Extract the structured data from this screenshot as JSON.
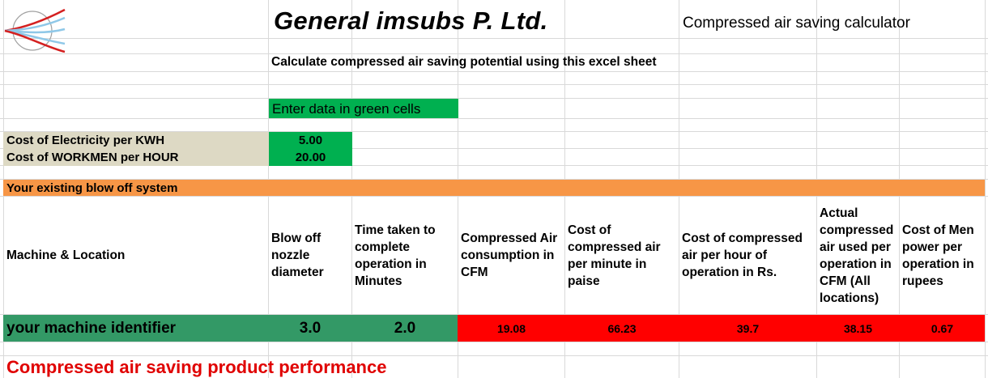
{
  "header": {
    "company": "General imsubs P. Ltd.",
    "calculator_title": "Compressed air saving calculator",
    "instruction": "Calculate compressed air saving potential using this excel sheet",
    "green_hint": "Enter data in green cells"
  },
  "inputs": [
    {
      "label": "Cost of Electricity per KWH",
      "value": "5.00"
    },
    {
      "label": "Cost of WORKMEN per HOUR",
      "value": "20.00"
    }
  ],
  "section": {
    "existing_system": "Your existing blow off system",
    "product_performance": "Compressed air saving product performance"
  },
  "table": {
    "columns": [
      "Machine & Location",
      "Blow off nozzle diameter",
      "Time taken to complete operation in Minutes",
      "Compressed Air consumption in CFM",
      "Cost of compressed air per minute in paise",
      "Cost of compressed air per hour of operation in Rs.",
      "Actual compressed air used per operation in CFM (All locations)",
      "Cost of Men power per operation in rupees"
    ],
    "row": {
      "machine": "your machine identifier",
      "nozzle_diameter": "3.0",
      "time_minutes": "2.0",
      "cfm": "19.08",
      "cost_per_minute_paise": "66.23",
      "cost_per_hour_rs": "39.7",
      "actual_cfm": "38.15",
      "men_power_cost": "0.67"
    }
  },
  "colors": {
    "green_input": "#00b050",
    "tan_label": "#ddd9c4",
    "orange_header": "#f79646",
    "row_green": "#339966",
    "row_red": "#ff0000",
    "heading_red": "#e00000"
  }
}
